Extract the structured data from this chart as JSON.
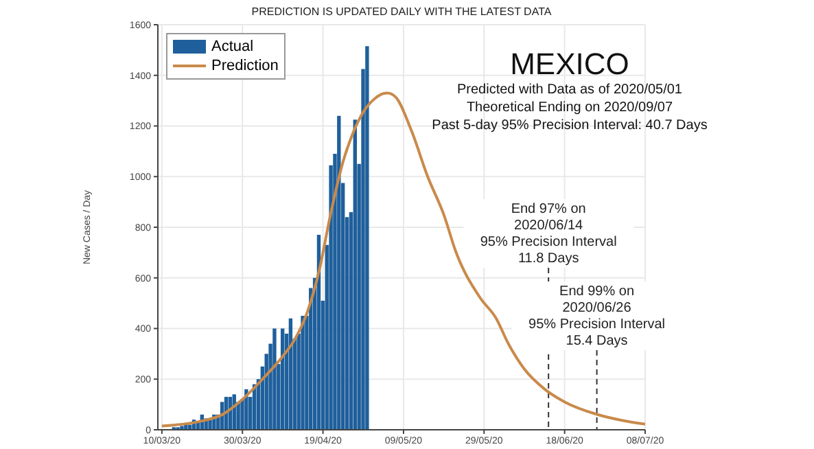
{
  "chart_data": {
    "type": "bar",
    "title": "PREDICTION IS UPDATED DAILY WITH THE LATEST DATA",
    "ylabel": "New Cases / Day",
    "annotations": [
      "MEXICO",
      "Predicted with Data as of 2020/05/01",
      "Theoretical Ending on 2020/09/07",
      "Past 5-day 95% Precision Interval: 40.7 Days"
    ],
    "xlim": [
      "2020-03-09",
      "2020-07-08"
    ],
    "xticks": [
      {
        "value": "2020-03-10",
        "label": "10/03/20"
      },
      {
        "value": "2020-03-30",
        "label": "30/03/20"
      },
      {
        "value": "2020-04-19",
        "label": "19/04/20"
      },
      {
        "value": "2020-05-09",
        "label": "09/05/20"
      },
      {
        "value": "2020-05-29",
        "label": "29/05/20"
      },
      {
        "value": "2020-06-18",
        "label": "18/06/20"
      },
      {
        "value": "2020-07-08",
        "label": "08/07/20"
      }
    ],
    "ylim": [
      0,
      1600
    ],
    "yticks": [
      0,
      200,
      400,
      600,
      800,
      1000,
      1200,
      1400,
      1600
    ],
    "grid": true,
    "legend": "top left",
    "marker": "none",
    "series": [
      {
        "name": "Actual",
        "color": "#1f5f9b",
        "x": [
          "2020-03-13",
          "2020-03-14",
          "2020-03-15",
          "2020-03-16",
          "2020-03-17",
          "2020-03-18",
          "2020-03-19",
          "2020-03-20",
          "2020-03-21",
          "2020-03-22",
          "2020-03-23",
          "2020-03-24",
          "2020-03-25",
          "2020-03-26",
          "2020-03-27",
          "2020-03-28",
          "2020-03-29",
          "2020-03-30",
          "2020-03-31",
          "2020-04-01",
          "2020-04-02",
          "2020-04-03",
          "2020-04-04",
          "2020-04-05",
          "2020-04-06",
          "2020-04-07",
          "2020-04-08",
          "2020-04-09",
          "2020-04-10",
          "2020-04-11",
          "2020-04-12",
          "2020-04-13",
          "2020-04-14",
          "2020-04-15",
          "2020-04-16",
          "2020-04-17",
          "2020-04-18",
          "2020-04-19",
          "2020-04-20",
          "2020-04-21",
          "2020-04-22",
          "2020-04-23",
          "2020-04-24",
          "2020-04-25",
          "2020-04-26",
          "2020-04-27",
          "2020-04-28",
          "2020-04-29",
          "2020-04-30"
        ],
        "values": [
          10,
          10,
          15,
          20,
          20,
          40,
          30,
          60,
          45,
          40,
          60,
          60,
          110,
          130,
          130,
          140,
          110,
          120,
          160,
          130,
          180,
          200,
          250,
          300,
          340,
          400,
          260,
          400,
          380,
          440,
          360,
          380,
          450,
          450,
          560,
          600,
          770,
          510,
          730,
          1045,
          1090,
          1240,
          975,
          840,
          860,
          1225,
          1050,
          1425,
          1515
        ]
      },
      {
        "name": "Prediction",
        "type": "line",
        "color": "#c98a4b",
        "line_style": "solid",
        "x": [
          "2020-03-10",
          "2020-03-20",
          "2020-03-25",
          "2020-03-30",
          "2020-04-04",
          "2020-04-09",
          "2020-04-12",
          "2020-04-15",
          "2020-04-18",
          "2020-04-21",
          "2020-04-24",
          "2020-04-26",
          "2020-04-29",
          "2020-05-02",
          "2020-05-04",
          "2020-05-05",
          "2020-05-07",
          "2020-05-11",
          "2020-05-15",
          "2020-05-19",
          "2020-05-22",
          "2020-05-28",
          "2020-06-01",
          "2020-06-04",
          "2020-06-08",
          "2020-06-13",
          "2020-06-18",
          "2020-06-26",
          "2020-07-02",
          "2020-07-08"
        ],
        "values": [
          15,
          35,
          60,
          120,
          200,
          290,
          357,
          460,
          625,
          860,
          1060,
          1154,
          1255,
          1310,
          1328,
          1330,
          1315,
          1180,
          1000,
          850,
          703,
          522,
          440,
          341,
          240,
          161,
          110,
          61,
          38,
          22
        ]
      }
    ],
    "ref_lines": [
      {
        "axis": "x",
        "value": "2020-06-14",
        "label": "End 97% on\n2020/06/14\n95% Precision Interval\n11.8 Days",
        "color": "#333333",
        "line_style": "dashed"
      },
      {
        "axis": "x",
        "value": "2020-06-26",
        "label": "End 99% on\n2020/06/26\n95% Precision Interval\n15.4 Days",
        "color": "#333333",
        "line_style": "dashed"
      }
    ]
  }
}
